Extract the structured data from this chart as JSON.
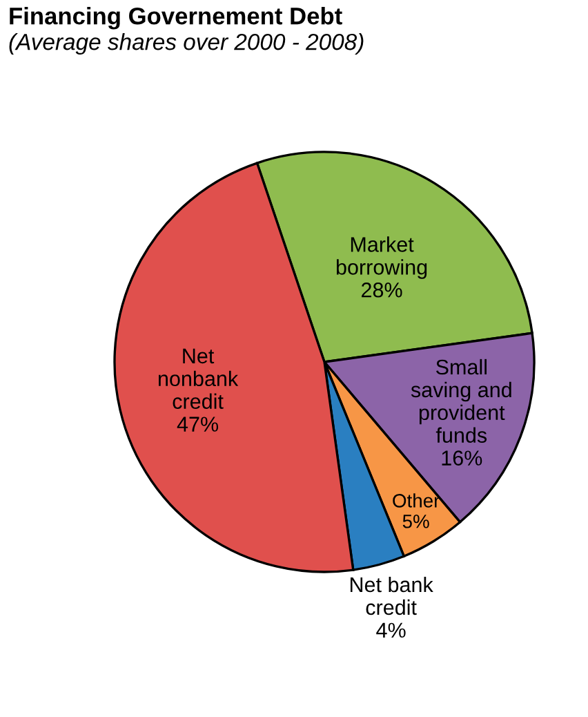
{
  "chart_data": {
    "type": "pie",
    "title": "Financing Governement Debt",
    "subtitle": "(Average shares over 2000 - 2008)",
    "categories": [
      "Market\nborrowing",
      "Small\nsaving and\nprovident\nfunds",
      "Other",
      "Net bank\ncredit",
      "Net\nnonbank\ncredit"
    ],
    "values": [
      28,
      16,
      5,
      4,
      47
    ],
    "value_labels": [
      "28%",
      "16%",
      "5%",
      "4%",
      "47%"
    ],
    "colors": [
      "#8fbc4f",
      "#8c64a8",
      "#f79646",
      "#2a7fc1",
      "#e0504d"
    ]
  }
}
